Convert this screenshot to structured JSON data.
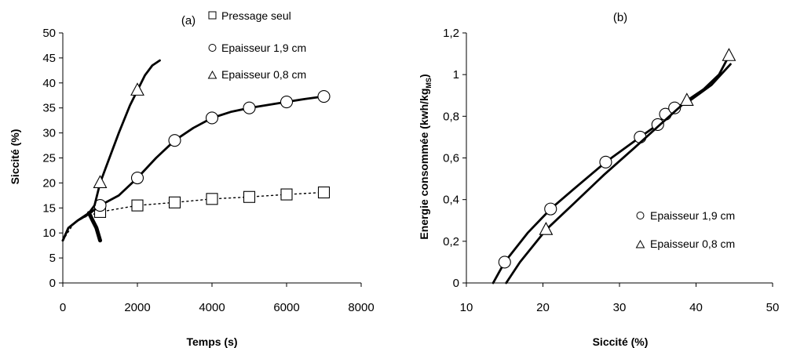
{
  "chart_data": [
    {
      "type": "line",
      "panel_label": "(a)",
      "xlabel": "Temps (s)",
      "ylabel": "Siccité (%)",
      "xlim": [
        0,
        8000
      ],
      "ylim": [
        0,
        50
      ],
      "x_ticks": [
        "0",
        "2000",
        "4000",
        "6000",
        "8000"
      ],
      "y_ticks": [
        "0",
        "5",
        "10",
        "15",
        "20",
        "25",
        "30",
        "35",
        "40",
        "45",
        "50"
      ],
      "grid": false,
      "legend_position": "top-right",
      "series": [
        {
          "name": "Pressage seul",
          "marker": "square",
          "line_style": "dotted",
          "points": [
            [
              0,
              8.5
            ],
            [
              300,
              12
            ],
            [
              600,
              13.2
            ],
            [
              1000,
              14.2
            ],
            [
              2000,
              15.5
            ],
            [
              3000,
              16.1
            ],
            [
              4000,
              16.8
            ],
            [
              5000,
              17.2
            ],
            [
              6000,
              17.7
            ],
            [
              7000,
              18.1
            ]
          ],
          "marker_points": [
            [
              1000,
              14.2
            ],
            [
              2000,
              15.5
            ],
            [
              3000,
              16.1
            ],
            [
              4000,
              16.8
            ],
            [
              5000,
              17.2
            ],
            [
              6000,
              17.7
            ],
            [
              7000,
              18.1
            ]
          ]
        },
        {
          "name": "Epaisseur 1,9 cm",
          "marker": "circle",
          "line_style": "solid",
          "points": [
            [
              0,
              8.5
            ],
            [
              150,
              11
            ],
            [
              400,
              12.5
            ],
            [
              700,
              13.8
            ],
            [
              1000,
              15.5
            ],
            [
              1500,
              17.5
            ],
            [
              2000,
              21
            ],
            [
              2500,
              25
            ],
            [
              3000,
              28.5
            ],
            [
              3500,
              31
            ],
            [
              4000,
              33
            ],
            [
              4500,
              34.2
            ],
            [
              5000,
              35
            ],
            [
              5500,
              35.6
            ],
            [
              6000,
              36.2
            ],
            [
              6500,
              36.8
            ],
            [
              7000,
              37.3
            ]
          ],
          "marker_points": [
            [
              1000,
              15.5
            ],
            [
              2000,
              21
            ],
            [
              3000,
              28.5
            ],
            [
              4000,
              33
            ],
            [
              5000,
              35
            ],
            [
              6000,
              36.2
            ],
            [
              7000,
              37.3
            ]
          ]
        },
        {
          "name": "Epaisseur 0,8 cm",
          "marker": "triangle",
          "line_style": "solid",
          "points": [
            [
              0,
              8.5
            ],
            [
              150,
              11
            ],
            [
              400,
              12.5
            ],
            [
              700,
              14
            ],
            [
              850,
              15.5
            ],
            [
              1000,
              20
            ],
            [
              1200,
              24
            ],
            [
              1500,
              30
            ],
            [
              1800,
              35.5
            ],
            [
              2000,
              38.5
            ],
            [
              2200,
              41.5
            ],
            [
              2400,
              43.5
            ],
            [
              2600,
              44.5
            ]
          ],
          "marker_points": [
            [
              1000,
              20
            ],
            [
              2000,
              38.5
            ]
          ]
        },
        {
          "name": "",
          "marker": "none",
          "line_style": "thick",
          "points": [
            [
              700,
              14
            ],
            [
              800,
              12.5
            ],
            [
              900,
              11
            ],
            [
              1000,
              8.5
            ]
          ]
        }
      ]
    },
    {
      "type": "line",
      "panel_label": "(b)",
      "xlabel": "Siccité (%)",
      "ylabel": "Energie consommée (kwh/kg",
      "ylabel_subscript": "MS",
      "ylabel_close": ")",
      "xlim": [
        10,
        50
      ],
      "ylim": [
        0,
        1.2
      ],
      "x_ticks": [
        "10",
        "20",
        "30",
        "40",
        "50"
      ],
      "y_ticks": [
        "0",
        "0,2",
        "0,4",
        "0,6",
        "0,8",
        "1",
        "1,2"
      ],
      "grid": false,
      "legend_position": "bottom-right",
      "series": [
        {
          "name": "Epaisseur 1,9 cm",
          "marker": "circle",
          "line_style": "solid",
          "points": [
            [
              13.5,
              0
            ],
            [
              15,
              0.1
            ],
            [
              18,
              0.24
            ],
            [
              21,
              0.355
            ],
            [
              24,
              0.45
            ],
            [
              28.2,
              0.58
            ],
            [
              32.7,
              0.7
            ],
            [
              35,
              0.76
            ],
            [
              36,
              0.81
            ],
            [
              37.2,
              0.84
            ],
            [
              39,
              0.87
            ],
            [
              42,
              0.95
            ],
            [
              44.5,
              1.05
            ]
          ],
          "marker_points": [
            [
              15,
              0.1
            ],
            [
              21,
              0.355
            ],
            [
              28.2,
              0.58
            ],
            [
              32.7,
              0.7
            ],
            [
              35,
              0.76
            ],
            [
              36,
              0.81
            ],
            [
              37.2,
              0.84
            ]
          ]
        },
        {
          "name": "Epaisseur 0,8 cm",
          "marker": "triangle",
          "line_style": "solid",
          "points": [
            [
              15.2,
              0
            ],
            [
              17,
              0.1
            ],
            [
              20.4,
              0.255
            ],
            [
              24,
              0.38
            ],
            [
              28,
              0.52
            ],
            [
              32,
              0.65
            ],
            [
              35,
              0.75
            ],
            [
              38.8,
              0.875
            ],
            [
              41,
              0.93
            ],
            [
              43,
              1.0
            ],
            [
              44.3,
              1.09
            ]
          ],
          "marker_points": [
            [
              20.4,
              0.255
            ],
            [
              38.8,
              0.875
            ],
            [
              44.3,
              1.09
            ]
          ]
        }
      ]
    }
  ]
}
